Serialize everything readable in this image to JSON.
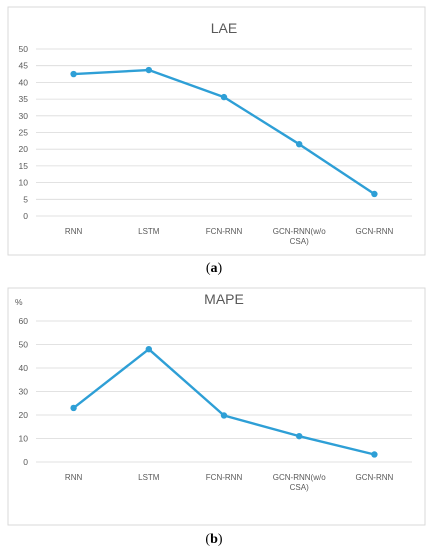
{
  "chart_data": [
    {
      "type": "line",
      "title": "LAE",
      "unit": "",
      "categories": [
        "RNN",
        "LSTM",
        "FCN-RNN",
        [
          "GCN-RNN(w/o",
          "CSA)"
        ],
        "GCN-RNN"
      ],
      "values": [
        42.5,
        43.7,
        35.6,
        21.5,
        6.6
      ],
      "ylim": [
        0,
        50
      ],
      "yticks": [
        0,
        5,
        10,
        15,
        20,
        25,
        30,
        35,
        40,
        45,
        50
      ],
      "grid": true,
      "caption_pre": "(",
      "caption_letter": "a",
      "caption_post": ")"
    },
    {
      "type": "line",
      "title": "MAPE",
      "unit": "%",
      "categories": [
        "RNN",
        "LSTM",
        "FCN-RNN",
        [
          "GCN-RNN(w/o",
          "CSA)"
        ],
        "GCN-RNN"
      ],
      "values": [
        23,
        48,
        19.8,
        11,
        3.2
      ],
      "ylim": [
        0,
        60
      ],
      "yticks": [
        0,
        10,
        20,
        30,
        40,
        50,
        60
      ],
      "grid": true,
      "caption_pre": "(",
      "caption_letter": "b",
      "caption_post": ")"
    }
  ],
  "colors": {
    "series": "#2e9fd6",
    "grid": "#d9d9d9"
  }
}
